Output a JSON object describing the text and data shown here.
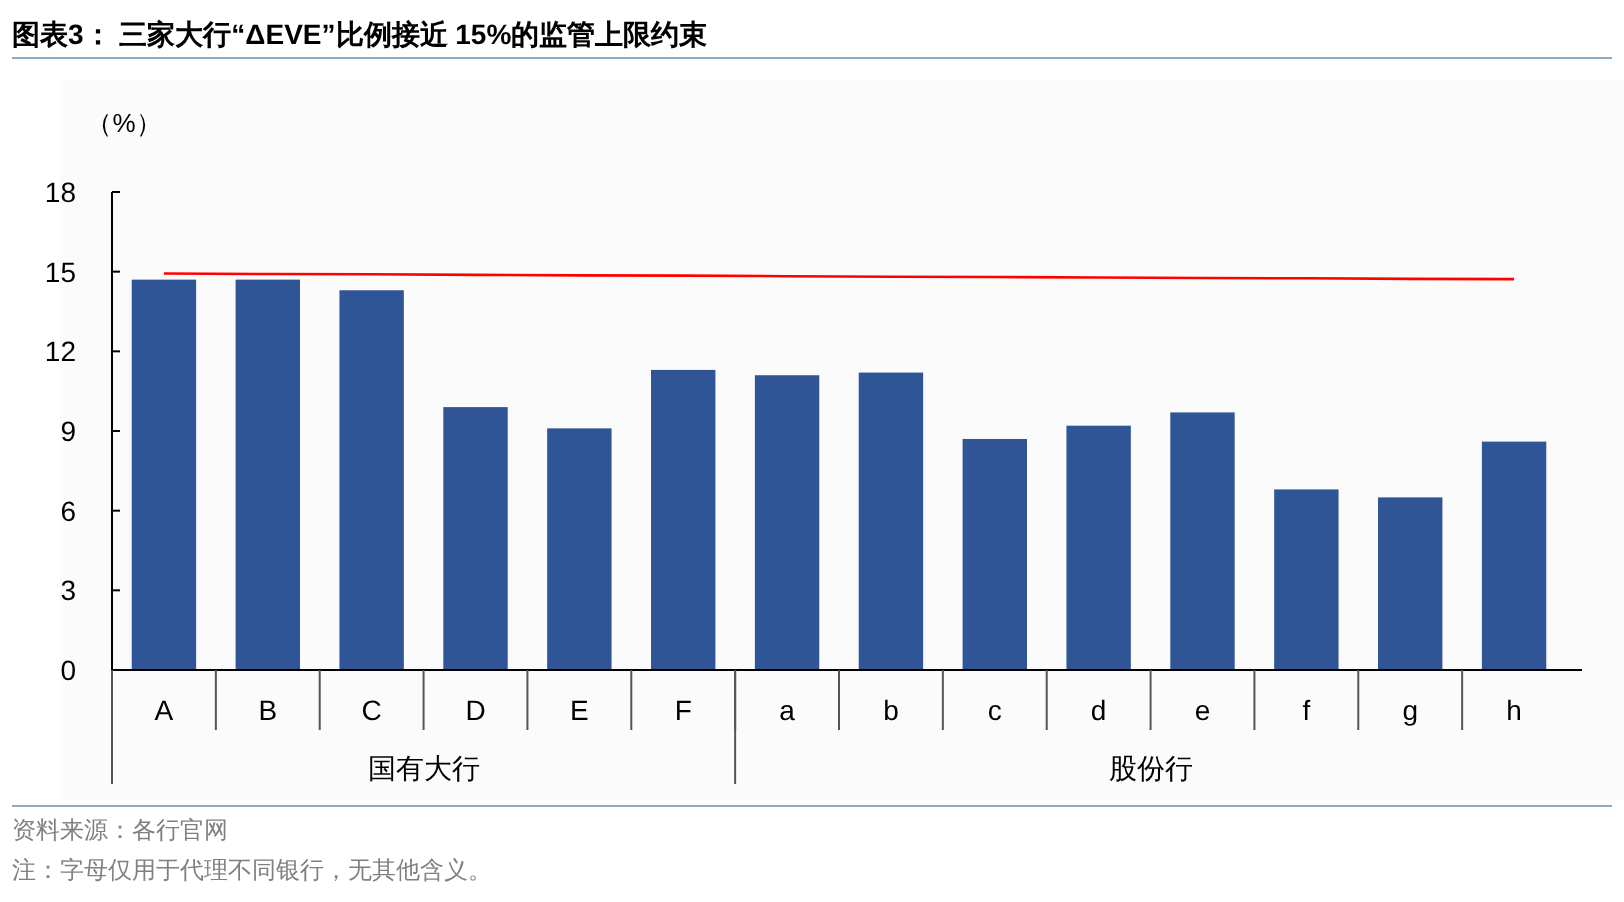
{
  "chart_data": {
    "type": "bar",
    "title": "图表3：  三家大行“ΔEVE”比例接近 15%的监管上限约束",
    "ylabel": "（%）",
    "categories": [
      "A",
      "B",
      "C",
      "D",
      "E",
      "F",
      "a",
      "b",
      "c",
      "d",
      "e",
      "f",
      "g",
      "h"
    ],
    "series": [
      {
        "color": "#2f5597",
        "values": [
          14.7,
          14.7,
          14.3,
          9.9,
          9.1,
          11.3,
          11.1,
          11.2,
          8.7,
          9.2,
          9.7,
          6.8,
          6.5,
          8.6
        ]
      },
      {
        "type": "line",
        "color": "#ff0000",
        "values": [
          14.93,
          14.91,
          14.9,
          14.88,
          14.86,
          14.85,
          14.83,
          14.81,
          14.8,
          14.78,
          14.76,
          14.75,
          14.73,
          14.72
        ]
      }
    ],
    "ylim": [
      0,
      18
    ],
    "yticks": [
      0,
      3,
      6,
      9,
      12,
      15,
      18
    ],
    "grid": false,
    "annotations": [
      "国有大行",
      "股份行",
      "资料来源：各行官网",
      "注：字母仅用于代理不同银行，无其他含义。"
    ]
  }
}
